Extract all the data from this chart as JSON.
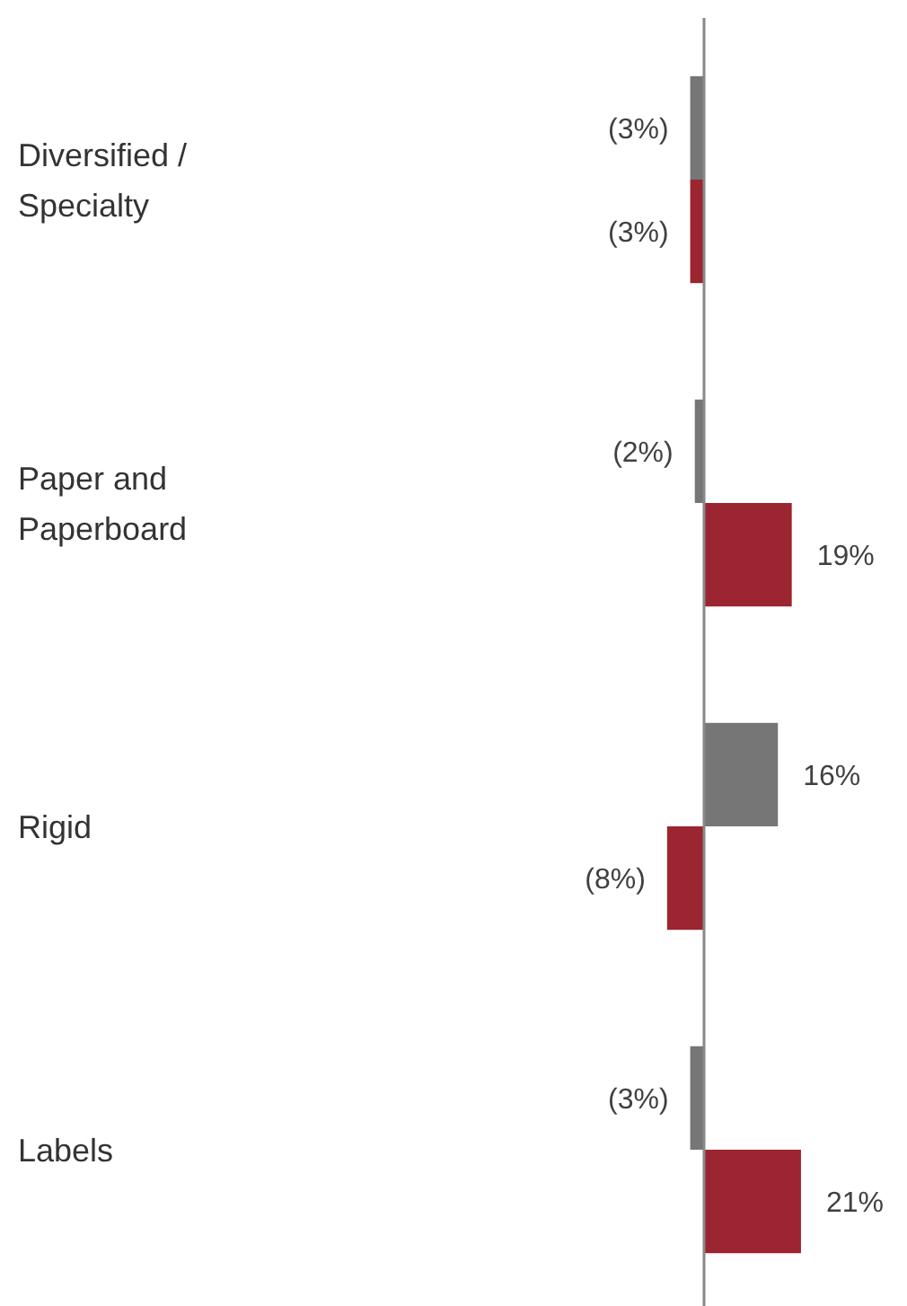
{
  "chart_data": {
    "type": "bar",
    "orientation": "horizontal",
    "categories": [
      "Diversified / Specialty",
      "Paper and Paperboard",
      "Rigid",
      "Labels"
    ],
    "tick_labels": "y",
    "series": [
      {
        "color": "#767676",
        "values": [
          -3,
          -2,
          16,
          -3
        ],
        "value_labels": [
          "(3%)",
          "(2%)",
          "16%",
          "(3%)"
        ]
      },
      {
        "color": "#9b2530",
        "values": [
          -3,
          19,
          -8,
          21
        ],
        "value_labels": [
          "(3%)",
          "19%",
          "(8%)",
          "21%"
        ]
      }
    ]
  }
}
